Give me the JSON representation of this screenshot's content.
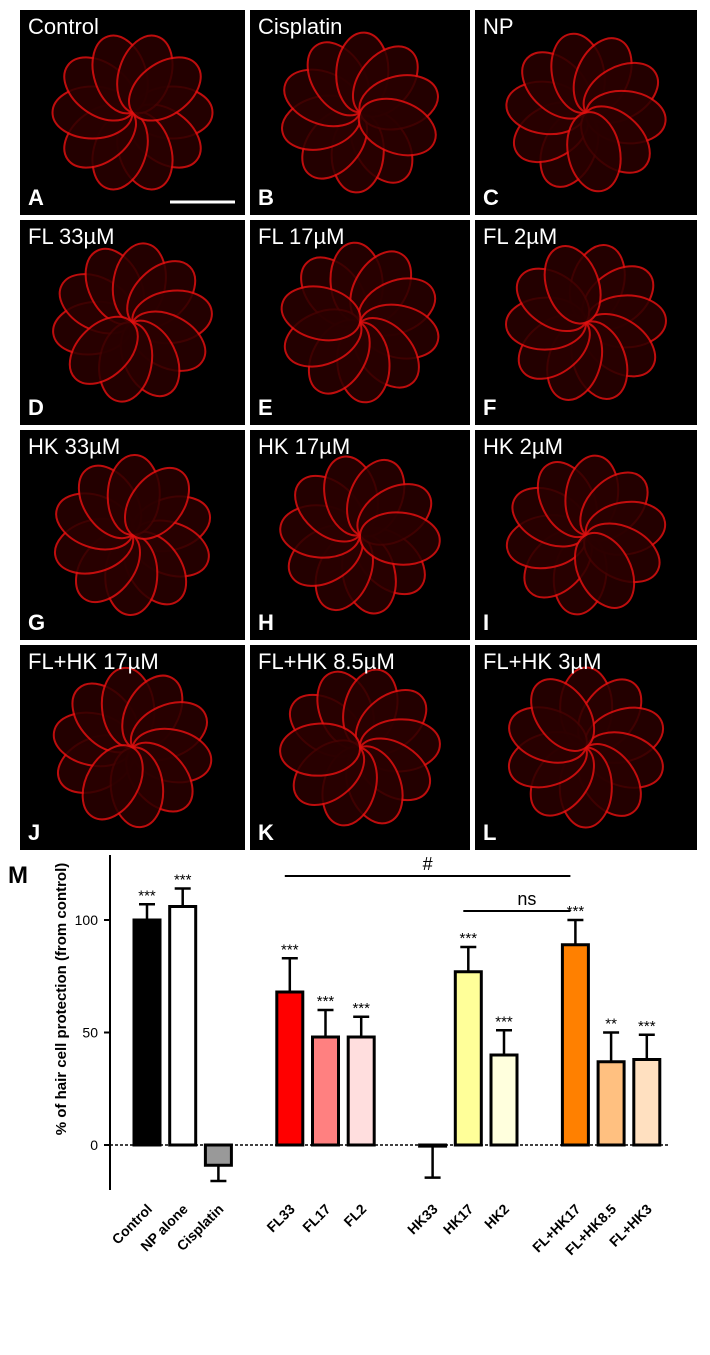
{
  "panels": [
    {
      "label": "Control",
      "letter": "A"
    },
    {
      "label": "Cisplatin",
      "letter": "B"
    },
    {
      "label": "NP",
      "letter": "C"
    },
    {
      "label": "FL 33µM",
      "letter": "D"
    },
    {
      "label": "FL 17µM",
      "letter": "E"
    },
    {
      "label": "FL 2µM",
      "letter": "F"
    },
    {
      "label": "HK 33µM",
      "letter": "G"
    },
    {
      "label": "HK 17µM",
      "letter": "H"
    },
    {
      "label": "HK 2µM",
      "letter": "I"
    },
    {
      "label": "FL+HK 17µM",
      "letter": "J"
    },
    {
      "label": "FL+HK 8.5µM",
      "letter": "K"
    },
    {
      "label": "FL+HK 3µM",
      "letter": "L"
    }
  ],
  "chart_data": {
    "type": "bar",
    "panel_letter": "M",
    "ylabel": "% of hair cell protection (from control)",
    "categories": [
      "Control",
      "NP alone",
      "Cisplatin",
      null,
      "FL33",
      "FL17",
      "FL2",
      null,
      "HK33",
      "HK17",
      "HK2",
      null,
      "FL+HK17",
      "FL+HK8.5",
      "FL+HK3"
    ],
    "values": [
      100,
      106,
      -9,
      null,
      68,
      48,
      48,
      null,
      -0.5,
      77,
      40,
      null,
      89,
      37,
      38
    ],
    "errors": [
      7,
      8,
      7,
      null,
      15,
      12,
      9,
      null,
      14,
      11,
      11,
      null,
      11,
      13,
      11
    ],
    "colors": [
      "#000000",
      "#ffffff",
      "#999999",
      null,
      "#ff0000",
      "#ff8080",
      "#ffdede",
      null,
      "#ffffff",
      "#ffff99",
      "#ffffdd",
      null,
      "#ff8000",
      "#ffc080",
      "#ffe0c0"
    ],
    "significance": [
      "***",
      "***",
      null,
      null,
      "***",
      "***",
      "***",
      null,
      null,
      "***",
      "***",
      null,
      "***",
      "**",
      "***"
    ],
    "brackets": [
      {
        "from": "FL33",
        "to": "FL+HK17",
        "label": "#"
      },
      {
        "from": "HK17",
        "to": "FL+HK17",
        "label": "ns"
      }
    ],
    "ylim": [
      -20,
      132
    ],
    "yticks": [
      0,
      50,
      100
    ]
  }
}
